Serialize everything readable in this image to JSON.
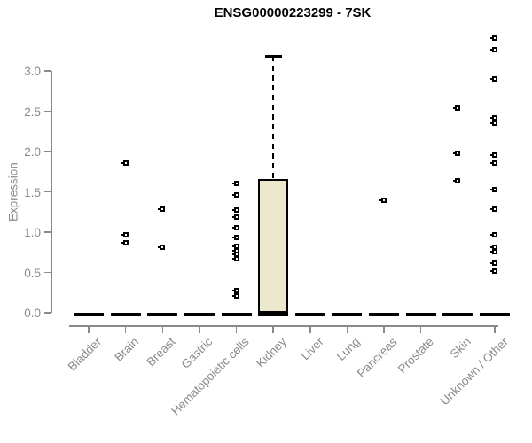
{
  "title": "ENSG00000223299 - 7SK",
  "y_axis": {
    "label": "Expression"
  },
  "colors": {
    "axis_text": "#8b8b8b",
    "axis_line": "#8a8a8a",
    "point_color": "#000000",
    "box_fill": "#ECE8CC",
    "box_border": "#000000",
    "title_color": "#000000",
    "background": "#ffffff"
  },
  "chart_data": {
    "type": "boxplot",
    "title": "ENSG00000223299 - 7SK",
    "xlabel": "",
    "ylabel": "Expression",
    "ylim": [
      0,
      3.45
    ],
    "grid": false,
    "legend": "none",
    "y_tick_labels": [
      "0.0",
      "0.5",
      "1.0",
      "1.5",
      "2.0",
      "2.5",
      "3.0"
    ],
    "categories": [
      "Bladder",
      "Brain",
      "Breast",
      "Gastric",
      "Hematopoietic cells",
      "Kidney",
      "Liver",
      "Lung",
      "Pancreas",
      "Prostate",
      "Skin",
      "Unknown / Other"
    ],
    "medians": [
      0,
      0,
      0,
      0,
      0,
      0,
      0,
      0,
      0,
      0,
      0,
      0
    ],
    "points_by_category": [
      [],
      [
        1.86,
        0.97,
        0.87
      ],
      [
        1.29,
        0.81
      ],
      [],
      [
        1.6,
        1.46,
        1.27,
        1.19,
        1.06,
        0.93,
        0.82,
        0.77,
        0.72,
        0.67,
        0.27,
        0.21
      ],
      [],
      [],
      [],
      [
        1.4
      ],
      [],
      [
        2.54,
        1.98,
        1.64
      ],
      [
        3.41,
        3.26,
        2.9,
        2.42,
        2.35,
        1.96,
        1.86,
        1.53,
        1.29,
        0.97,
        0.81,
        0.76,
        0.62,
        0.52
      ]
    ],
    "box": {
      "category": "Kidney",
      "q1": 0.0,
      "median": 0.01,
      "q3": 1.66,
      "whisker_high": 3.19,
      "whisker_low": 0.0
    }
  }
}
